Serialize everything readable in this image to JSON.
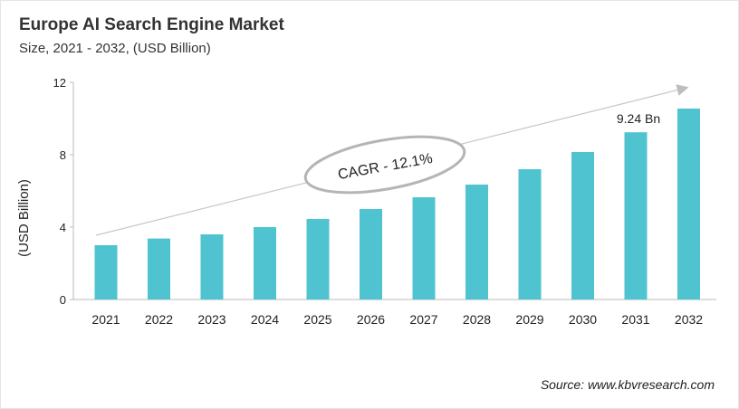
{
  "chart_data": {
    "type": "bar",
    "title": "Europe AI Search Engine Market",
    "subtitle": "Size, 2021 - 2032, (USD Billion)",
    "xlabel": "",
    "ylabel": "(USD Billion)",
    "categories": [
      "2021",
      "2022",
      "2023",
      "2024",
      "2025",
      "2026",
      "2027",
      "2028",
      "2029",
      "2030",
      "2031",
      "2032"
    ],
    "values": [
      3.0,
      3.37,
      3.6,
      4.0,
      4.45,
      5.0,
      5.65,
      6.35,
      7.2,
      8.15,
      9.24,
      10.55
    ],
    "ylim": [
      0,
      12
    ],
    "yticks": [
      0,
      4,
      8,
      12
    ],
    "grid": false,
    "bar_color": "#4fc3cf",
    "annotations": {
      "cagr": "CAGR - 12.1%",
      "data_label_2031": "9.24 Bn"
    },
    "source": "Source: www.kbvresearch.com"
  }
}
